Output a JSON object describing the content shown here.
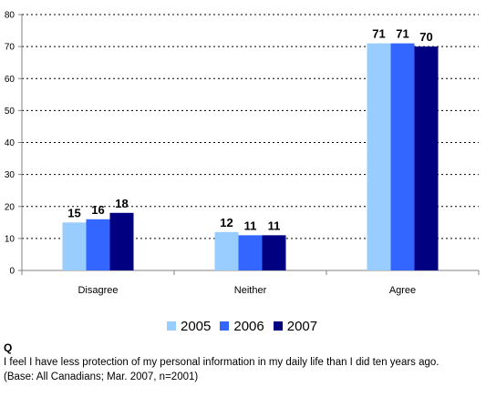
{
  "chart_data": {
    "type": "bar",
    "categories": [
      "Disagree",
      "Neither",
      "Agree"
    ],
    "series": [
      {
        "name": "2005",
        "values": [
          15,
          12,
          71
        ],
        "color": "#99ccff"
      },
      {
        "name": "2006",
        "values": [
          16,
          11,
          71
        ],
        "color": "#3366ff"
      },
      {
        "name": "2007",
        "values": [
          18,
          11,
          70
        ],
        "color": "#000080"
      }
    ],
    "yticks": [
      "0",
      "10",
      "20",
      "30",
      "40",
      "50",
      "60",
      "70",
      "80"
    ],
    "ylim": [
      0,
      80
    ],
    "grid": true,
    "legend": "bottom"
  },
  "question": {
    "letter": "Q",
    "text": "I feel I have less protection of my personal information in my daily life than I did ten years ago.",
    "base": "(Base: All Canadians; Mar. 2007, n=2001)"
  }
}
